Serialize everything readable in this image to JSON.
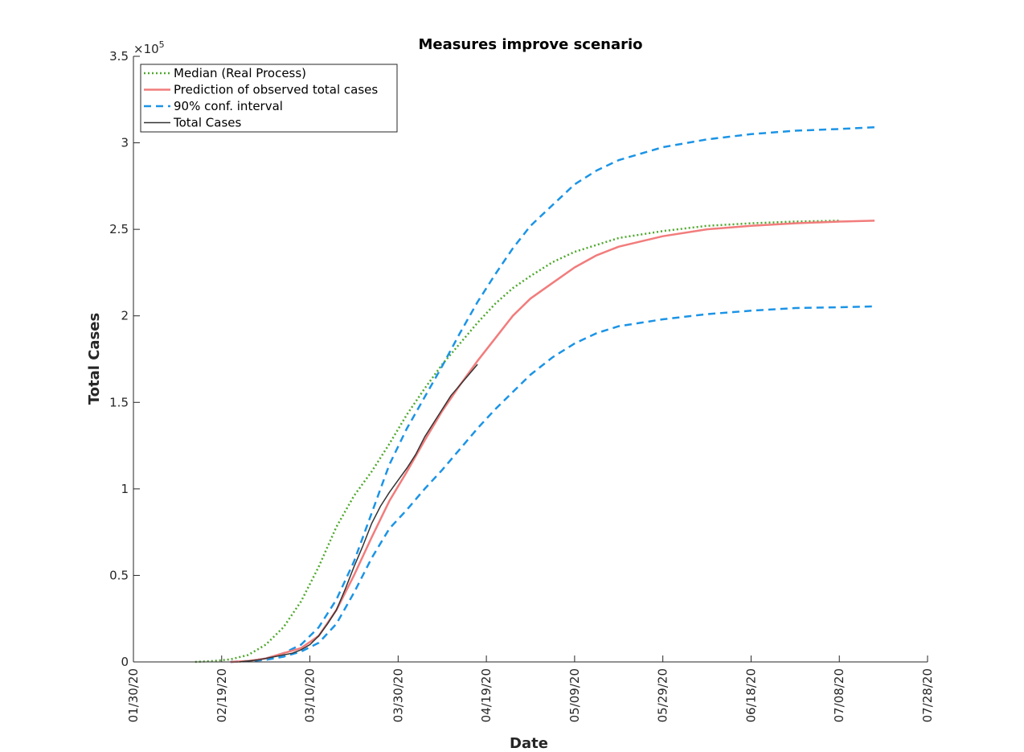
{
  "chart_data": {
    "type": "line",
    "title": "Measures improve scenario",
    "xlabel": "Date",
    "ylabel": "Total Cases",
    "y_exponent_label": "×10",
    "y_exponent_power": "5",
    "x_range_days": [
      0,
      180
    ],
    "xlim": [
      "01/30/20",
      "07/28/20"
    ],
    "ylim": [
      0,
      3.5
    ],
    "x_ticks": [
      {
        "day": 0,
        "label": "01/30/20"
      },
      {
        "day": 20,
        "label": "02/19/20"
      },
      {
        "day": 40,
        "label": "03/10/20"
      },
      {
        "day": 60,
        "label": "03/30/20"
      },
      {
        "day": 80,
        "label": "04/19/20"
      },
      {
        "day": 100,
        "label": "05/09/20"
      },
      {
        "day": 120,
        "label": "05/29/20"
      },
      {
        "day": 140,
        "label": "06/18/20"
      },
      {
        "day": 160,
        "label": "07/08/20"
      },
      {
        "day": 180,
        "label": "07/28/20"
      }
    ],
    "y_ticks": [
      {
        "value": 0,
        "label": "0"
      },
      {
        "value": 0.5,
        "label": "0.5"
      },
      {
        "value": 1,
        "label": "1"
      },
      {
        "value": 1.5,
        "label": "1.5"
      },
      {
        "value": 2,
        "label": "2"
      },
      {
        "value": 2.5,
        "label": "2.5"
      },
      {
        "value": 3,
        "label": "3"
      },
      {
        "value": 3.5,
        "label": "3.5"
      }
    ],
    "grid": false,
    "legend_position": "top-left",
    "series": [
      {
        "name": "Median (Real Process)",
        "color": "#4fa82e",
        "style": "dotted",
        "points": [
          [
            14,
            0
          ],
          [
            18,
            0.005
          ],
          [
            22,
            0.015
          ],
          [
            26,
            0.04
          ],
          [
            30,
            0.1
          ],
          [
            34,
            0.2
          ],
          [
            38,
            0.35
          ],
          [
            42,
            0.55
          ],
          [
            46,
            0.78
          ],
          [
            50,
            0.96
          ],
          [
            54,
            1.1
          ],
          [
            58,
            1.26
          ],
          [
            62,
            1.43
          ],
          [
            66,
            1.58
          ],
          [
            70,
            1.72
          ],
          [
            74,
            1.84
          ],
          [
            78,
            1.96
          ],
          [
            82,
            2.07
          ],
          [
            86,
            2.16
          ],
          [
            90,
            2.23
          ],
          [
            95,
            2.31
          ],
          [
            100,
            2.37
          ],
          [
            110,
            2.45
          ],
          [
            120,
            2.49
          ],
          [
            130,
            2.52
          ],
          [
            140,
            2.535
          ],
          [
            150,
            2.545
          ],
          [
            160,
            2.55
          ]
        ]
      },
      {
        "name": "Prediction of observed total cases",
        "color": "#f27c7c",
        "style": "solid",
        "points": [
          [
            22,
            0
          ],
          [
            26,
            0.005
          ],
          [
            30,
            0.02
          ],
          [
            34,
            0.05
          ],
          [
            38,
            0.08
          ],
          [
            42,
            0.15
          ],
          [
            46,
            0.3
          ],
          [
            50,
            0.5
          ],
          [
            54,
            0.72
          ],
          [
            58,
            0.93
          ],
          [
            62,
            1.1
          ],
          [
            66,
            1.28
          ],
          [
            70,
            1.45
          ],
          [
            74,
            1.6
          ],
          [
            78,
            1.74
          ],
          [
            82,
            1.87
          ],
          [
            86,
            2.0
          ],
          [
            90,
            2.1
          ],
          [
            95,
            2.19
          ],
          [
            100,
            2.28
          ],
          [
            105,
            2.35
          ],
          [
            110,
            2.4
          ],
          [
            120,
            2.46
          ],
          [
            130,
            2.5
          ],
          [
            140,
            2.52
          ],
          [
            150,
            2.535
          ],
          [
            160,
            2.545
          ],
          [
            168,
            2.55
          ]
        ]
      },
      {
        "name": "90% conf. interval",
        "color": "#1b94e6",
        "style": "dashed",
        "points": [
          [
            22,
            0
          ],
          [
            26,
            0.005
          ],
          [
            30,
            0.02
          ],
          [
            34,
            0.05
          ],
          [
            38,
            0.1
          ],
          [
            42,
            0.2
          ],
          [
            46,
            0.36
          ],
          [
            50,
            0.58
          ],
          [
            54,
            0.86
          ],
          [
            58,
            1.14
          ],
          [
            62,
            1.35
          ],
          [
            66,
            1.53
          ],
          [
            70,
            1.71
          ],
          [
            74,
            1.9
          ],
          [
            78,
            2.08
          ],
          [
            82,
            2.24
          ],
          [
            86,
            2.39
          ],
          [
            90,
            2.52
          ],
          [
            95,
            2.64
          ],
          [
            100,
            2.76
          ],
          [
            105,
            2.84
          ],
          [
            110,
            2.9
          ],
          [
            120,
            2.975
          ],
          [
            130,
            3.02
          ],
          [
            140,
            3.05
          ],
          [
            150,
            3.07
          ],
          [
            160,
            3.08
          ],
          [
            168,
            3.09
          ]
        ]
      },
      {
        "name": "",
        "color": "#1b94e6",
        "style": "dashed",
        "points": [
          [
            22,
            0
          ],
          [
            26,
            0.004
          ],
          [
            30,
            0.012
          ],
          [
            34,
            0.03
          ],
          [
            38,
            0.06
          ],
          [
            42,
            0.11
          ],
          [
            46,
            0.22
          ],
          [
            50,
            0.4
          ],
          [
            54,
            0.6
          ],
          [
            58,
            0.77
          ],
          [
            62,
            0.88
          ],
          [
            66,
            1.0
          ],
          [
            70,
            1.11
          ],
          [
            74,
            1.23
          ],
          [
            78,
            1.35
          ],
          [
            82,
            1.46
          ],
          [
            86,
            1.56
          ],
          [
            90,
            1.66
          ],
          [
            95,
            1.76
          ],
          [
            100,
            1.84
          ],
          [
            105,
            1.9
          ],
          [
            110,
            1.94
          ],
          [
            120,
            1.98
          ],
          [
            130,
            2.01
          ],
          [
            140,
            2.03
          ],
          [
            150,
            2.045
          ],
          [
            160,
            2.05
          ],
          [
            168,
            2.055
          ]
        ]
      },
      {
        "name": "Total Cases",
        "color": "#333333",
        "style": "solid",
        "points": [
          [
            24,
            0
          ],
          [
            28,
            0.01
          ],
          [
            32,
            0.03
          ],
          [
            36,
            0.05
          ],
          [
            38,
            0.07
          ],
          [
            40,
            0.1
          ],
          [
            42,
            0.15
          ],
          [
            44,
            0.22
          ],
          [
            46,
            0.3
          ],
          [
            48,
            0.42
          ],
          [
            50,
            0.55
          ],
          [
            52,
            0.67
          ],
          [
            54,
            0.8
          ],
          [
            56,
            0.9
          ],
          [
            58,
            0.98
          ],
          [
            60,
            1.05
          ],
          [
            62,
            1.12
          ],
          [
            64,
            1.2
          ],
          [
            66,
            1.3
          ],
          [
            68,
            1.38
          ],
          [
            70,
            1.46
          ],
          [
            72,
            1.54
          ],
          [
            74,
            1.6
          ],
          [
            76,
            1.66
          ],
          [
            78,
            1.72
          ]
        ]
      }
    ]
  },
  "legend": {
    "items": [
      {
        "label": "Median (Real Process)",
        "color": "#4fa82e",
        "style": "dotted"
      },
      {
        "label": "Prediction of observed total cases",
        "color": "#f27c7c",
        "style": "solid"
      },
      {
        "label": "90% conf. interval",
        "color": "#1b94e6",
        "style": "dashed"
      },
      {
        "label": "Total Cases",
        "color": "#333333",
        "style": "solid"
      }
    ]
  }
}
